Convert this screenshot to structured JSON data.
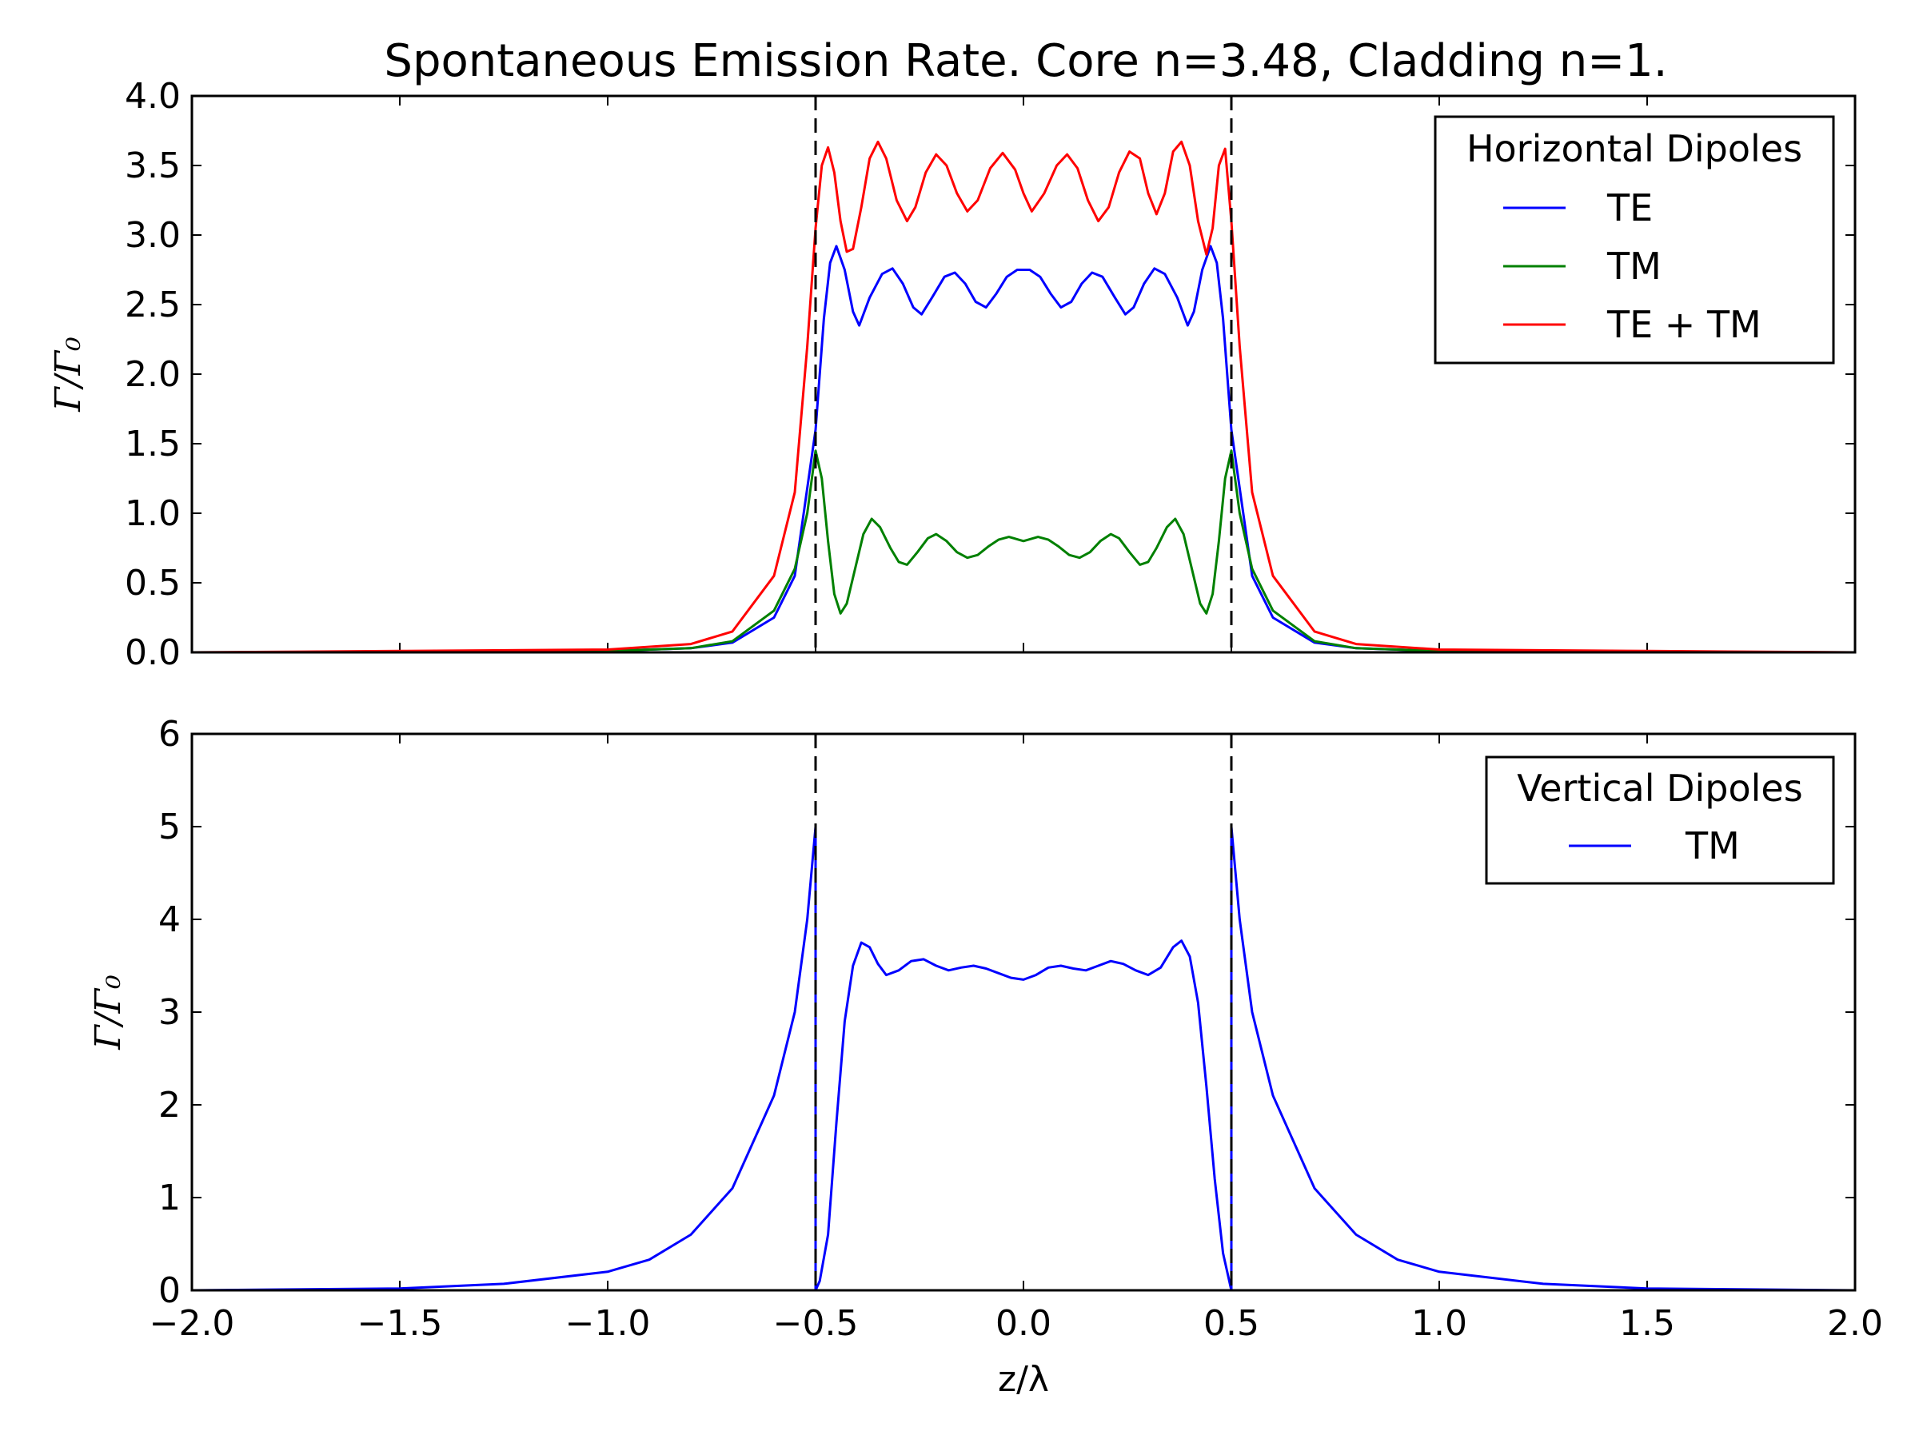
{
  "title": "Spontaneous Emission Rate. Core n=3.48, Cladding n=1.",
  "xlabel": "z/λ",
  "ylabel": "Γ/Γ₀",
  "colors": {
    "TE": "#0000ff",
    "TM": "#008000",
    "TE_TM": "#ff0000",
    "boundary": "#000000"
  },
  "chart_data": [
    {
      "type": "line",
      "title": "Spontaneous Emission Rate. Core n=3.48, Cladding n=1.",
      "xlabel": "",
      "ylabel": "Γ/Γ₀",
      "xlim": [
        -2.0,
        2.0
      ],
      "ylim": [
        0.0,
        4.0
      ],
      "xticks": [
        -2.0,
        -1.5,
        -1.0,
        -0.5,
        0.0,
        0.5,
        1.0,
        1.5,
        2.0
      ],
      "xtick_labels": [],
      "yticks": [
        0.0,
        0.5,
        1.0,
        1.5,
        2.0,
        2.5,
        3.0,
        3.5,
        4.0
      ],
      "ytick_labels": [
        "0.0",
        "0.5",
        "1.0",
        "1.5",
        "2.0",
        "2.5",
        "3.0",
        "3.5",
        "4.0"
      ],
      "boundaries": [
        -0.5,
        0.5
      ],
      "legend_title": "Horizontal Dipoles",
      "legend_position": "top-right",
      "series": [
        {
          "name": "TE",
          "color": "#0000ff",
          "points": [
            [
              -2.0,
              0.0
            ],
            [
              -1.5,
              0.0
            ],
            [
              -1.0,
              0.01
            ],
            [
              -0.8,
              0.03
            ],
            [
              -0.7,
              0.07
            ],
            [
              -0.6,
              0.25
            ],
            [
              -0.55,
              0.55
            ],
            [
              -0.5,
              1.6
            ],
            [
              -0.48,
              2.4
            ],
            [
              -0.465,
              2.8
            ],
            [
              -0.45,
              2.92
            ],
            [
              -0.43,
              2.75
            ],
            [
              -0.41,
              2.45
            ],
            [
              -0.395,
              2.35
            ],
            [
              -0.37,
              2.55
            ],
            [
              -0.34,
              2.72
            ],
            [
              -0.315,
              2.76
            ],
            [
              -0.29,
              2.65
            ],
            [
              -0.265,
              2.48
            ],
            [
              -0.245,
              2.43
            ],
            [
              -0.22,
              2.55
            ],
            [
              -0.19,
              2.7
            ],
            [
              -0.165,
              2.73
            ],
            [
              -0.14,
              2.65
            ],
            [
              -0.115,
              2.52
            ],
            [
              -0.09,
              2.48
            ],
            [
              -0.065,
              2.58
            ],
            [
              -0.04,
              2.7
            ],
            [
              -0.015,
              2.75
            ],
            [
              0.015,
              2.75
            ],
            [
              0.04,
              2.7
            ],
            [
              0.065,
              2.58
            ],
            [
              0.09,
              2.48
            ],
            [
              0.115,
              2.52
            ],
            [
              0.14,
              2.65
            ],
            [
              0.165,
              2.73
            ],
            [
              0.19,
              2.7
            ],
            [
              0.22,
              2.55
            ],
            [
              0.245,
              2.43
            ],
            [
              0.265,
              2.48
            ],
            [
              0.29,
              2.65
            ],
            [
              0.315,
              2.76
            ],
            [
              0.34,
              2.72
            ],
            [
              0.37,
              2.55
            ],
            [
              0.395,
              2.35
            ],
            [
              0.41,
              2.45
            ],
            [
              0.43,
              2.75
            ],
            [
              0.45,
              2.92
            ],
            [
              0.465,
              2.8
            ],
            [
              0.48,
              2.4
            ],
            [
              0.5,
              1.6
            ],
            [
              0.55,
              0.55
            ],
            [
              0.6,
              0.25
            ],
            [
              0.7,
              0.07
            ],
            [
              0.8,
              0.03
            ],
            [
              1.0,
              0.01
            ],
            [
              1.5,
              0.0
            ],
            [
              2.0,
              0.0
            ]
          ]
        },
        {
          "name": "TM",
          "color": "#008000",
          "points": [
            [
              -2.0,
              0.0
            ],
            [
              -1.5,
              0.0
            ],
            [
              -1.0,
              0.01
            ],
            [
              -0.8,
              0.03
            ],
            [
              -0.7,
              0.08
            ],
            [
              -0.6,
              0.3
            ],
            [
              -0.55,
              0.6
            ],
            [
              -0.52,
              1.0
            ],
            [
              -0.5,
              1.45
            ],
            [
              -0.485,
              1.25
            ],
            [
              -0.47,
              0.8
            ],
            [
              -0.455,
              0.42
            ],
            [
              -0.44,
              0.28
            ],
            [
              -0.425,
              0.35
            ],
            [
              -0.405,
              0.6
            ],
            [
              -0.385,
              0.85
            ],
            [
              -0.365,
              0.96
            ],
            [
              -0.345,
              0.9
            ],
            [
              -0.32,
              0.75
            ],
            [
              -0.3,
              0.65
            ],
            [
              -0.28,
              0.63
            ],
            [
              -0.255,
              0.72
            ],
            [
              -0.23,
              0.82
            ],
            [
              -0.21,
              0.85
            ],
            [
              -0.185,
              0.8
            ],
            [
              -0.16,
              0.72
            ],
            [
              -0.135,
              0.68
            ],
            [
              -0.11,
              0.7
            ],
            [
              -0.085,
              0.76
            ],
            [
              -0.06,
              0.81
            ],
            [
              -0.035,
              0.83
            ],
            [
              0.0,
              0.8
            ],
            [
              0.035,
              0.83
            ],
            [
              0.06,
              0.81
            ],
            [
              0.085,
              0.76
            ],
            [
              0.11,
              0.7
            ],
            [
              0.135,
              0.68
            ],
            [
              0.16,
              0.72
            ],
            [
              0.185,
              0.8
            ],
            [
              0.21,
              0.85
            ],
            [
              0.23,
              0.82
            ],
            [
              0.255,
              0.72
            ],
            [
              0.28,
              0.63
            ],
            [
              0.3,
              0.65
            ],
            [
              0.32,
              0.75
            ],
            [
              0.345,
              0.9
            ],
            [
              0.365,
              0.96
            ],
            [
              0.385,
              0.85
            ],
            [
              0.405,
              0.6
            ],
            [
              0.425,
              0.35
            ],
            [
              0.44,
              0.28
            ],
            [
              0.455,
              0.42
            ],
            [
              0.47,
              0.8
            ],
            [
              0.485,
              1.25
            ],
            [
              0.5,
              1.45
            ],
            [
              0.52,
              1.0
            ],
            [
              0.55,
              0.6
            ],
            [
              0.6,
              0.3
            ],
            [
              0.7,
              0.08
            ],
            [
              0.8,
              0.03
            ],
            [
              1.0,
              0.01
            ],
            [
              1.5,
              0.0
            ],
            [
              2.0,
              0.0
            ]
          ]
        },
        {
          "name": "TE + TM",
          "color": "#ff0000",
          "points": [
            [
              -2.0,
              0.0
            ],
            [
              -1.5,
              0.01
            ],
            [
              -1.0,
              0.02
            ],
            [
              -0.8,
              0.06
            ],
            [
              -0.7,
              0.15
            ],
            [
              -0.6,
              0.55
            ],
            [
              -0.55,
              1.15
            ],
            [
              -0.52,
              2.2
            ],
            [
              -0.5,
              3.05
            ],
            [
              -0.485,
              3.5
            ],
            [
              -0.47,
              3.63
            ],
            [
              -0.455,
              3.45
            ],
            [
              -0.44,
              3.1
            ],
            [
              -0.425,
              2.88
            ],
            [
              -0.41,
              2.9
            ],
            [
              -0.39,
              3.2
            ],
            [
              -0.37,
              3.55
            ],
            [
              -0.35,
              3.67
            ],
            [
              -0.33,
              3.55
            ],
            [
              -0.305,
              3.25
            ],
            [
              -0.28,
              3.1
            ],
            [
              -0.26,
              3.2
            ],
            [
              -0.235,
              3.45
            ],
            [
              -0.21,
              3.58
            ],
            [
              -0.185,
              3.5
            ],
            [
              -0.16,
              3.3
            ],
            [
              -0.135,
              3.17
            ],
            [
              -0.11,
              3.25
            ],
            [
              -0.08,
              3.48
            ],
            [
              -0.05,
              3.59
            ],
            [
              -0.02,
              3.47
            ],
            [
              0.0,
              3.3
            ],
            [
              0.02,
              3.17
            ],
            [
              0.05,
              3.3
            ],
            [
              0.08,
              3.5
            ],
            [
              0.105,
              3.58
            ],
            [
              0.13,
              3.48
            ],
            [
              0.155,
              3.25
            ],
            [
              0.18,
              3.1
            ],
            [
              0.205,
              3.2
            ],
            [
              0.23,
              3.45
            ],
            [
              0.255,
              3.6
            ],
            [
              0.28,
              3.55
            ],
            [
              0.3,
              3.3
            ],
            [
              0.32,
              3.15
            ],
            [
              0.34,
              3.3
            ],
            [
              0.36,
              3.6
            ],
            [
              0.38,
              3.67
            ],
            [
              0.4,
              3.5
            ],
            [
              0.42,
              3.1
            ],
            [
              0.44,
              2.86
            ],
            [
              0.455,
              3.05
            ],
            [
              0.47,
              3.5
            ],
            [
              0.485,
              3.62
            ],
            [
              0.5,
              3.1
            ],
            [
              0.52,
              2.2
            ],
            [
              0.55,
              1.15
            ],
            [
              0.6,
              0.55
            ],
            [
              0.7,
              0.15
            ],
            [
              0.8,
              0.06
            ],
            [
              1.0,
              0.02
            ],
            [
              1.5,
              0.01
            ],
            [
              2.0,
              0.0
            ]
          ]
        }
      ]
    },
    {
      "type": "line",
      "title": "",
      "xlabel": "z/λ",
      "ylabel": "Γ/Γ₀",
      "xlim": [
        -2.0,
        2.0
      ],
      "ylim": [
        0,
        6
      ],
      "xticks": [
        -2.0,
        -1.5,
        -1.0,
        -0.5,
        0.0,
        0.5,
        1.0,
        1.5,
        2.0
      ],
      "xtick_labels": [
        "−2.0",
        "−1.5",
        "−1.0",
        "−0.5",
        "0.0",
        "0.5",
        "1.0",
        "1.5",
        "2.0"
      ],
      "yticks": [
        0,
        1,
        2,
        3,
        4,
        5,
        6
      ],
      "ytick_labels": [
        "0",
        "1",
        "2",
        "3",
        "4",
        "5",
        "6"
      ],
      "boundaries": [
        -0.5,
        0.5
      ],
      "legend_title": "Vertical Dipoles",
      "legend_position": "top-right",
      "series": [
        {
          "name": "TM",
          "color": "#0000ff",
          "points": [
            [
              -2.0,
              0.0
            ],
            [
              -1.5,
              0.02
            ],
            [
              -1.25,
              0.07
            ],
            [
              -1.0,
              0.2
            ],
            [
              -0.9,
              0.33
            ],
            [
              -0.8,
              0.6
            ],
            [
              -0.7,
              1.1
            ],
            [
              -0.6,
              2.1
            ],
            [
              -0.55,
              3.0
            ],
            [
              -0.52,
              4.0
            ],
            [
              -0.5,
              5.0
            ],
            [
              -0.5,
              0.0
            ],
            [
              -0.49,
              0.1
            ],
            [
              -0.47,
              0.6
            ],
            [
              -0.45,
              1.8
            ],
            [
              -0.43,
              2.9
            ],
            [
              -0.41,
              3.5
            ],
            [
              -0.39,
              3.75
            ],
            [
              -0.37,
              3.7
            ],
            [
              -0.35,
              3.52
            ],
            [
              -0.33,
              3.4
            ],
            [
              -0.3,
              3.45
            ],
            [
              -0.27,
              3.55
            ],
            [
              -0.24,
              3.57
            ],
            [
              -0.21,
              3.5
            ],
            [
              -0.18,
              3.45
            ],
            [
              -0.15,
              3.48
            ],
            [
              -0.12,
              3.5
            ],
            [
              -0.09,
              3.47
            ],
            [
              -0.06,
              3.42
            ],
            [
              -0.03,
              3.37
            ],
            [
              0.0,
              3.35
            ],
            [
              0.03,
              3.4
            ],
            [
              0.06,
              3.48
            ],
            [
              0.09,
              3.5
            ],
            [
              0.12,
              3.47
            ],
            [
              0.15,
              3.45
            ],
            [
              0.18,
              3.5
            ],
            [
              0.21,
              3.55
            ],
            [
              0.24,
              3.52
            ],
            [
              0.27,
              3.45
            ],
            [
              0.3,
              3.4
            ],
            [
              0.33,
              3.48
            ],
            [
              0.36,
              3.7
            ],
            [
              0.38,
              3.77
            ],
            [
              0.4,
              3.6
            ],
            [
              0.42,
              3.1
            ],
            [
              0.44,
              2.2
            ],
            [
              0.46,
              1.2
            ],
            [
              0.48,
              0.4
            ],
            [
              0.5,
              0.0
            ],
            [
              0.5,
              5.0
            ],
            [
              0.52,
              4.0
            ],
            [
              0.55,
              3.0
            ],
            [
              0.6,
              2.1
            ],
            [
              0.7,
              1.1
            ],
            [
              0.8,
              0.6
            ],
            [
              0.9,
              0.33
            ],
            [
              1.0,
              0.2
            ],
            [
              1.25,
              0.07
            ],
            [
              1.5,
              0.02
            ],
            [
              2.0,
              0.0
            ]
          ]
        }
      ]
    }
  ]
}
